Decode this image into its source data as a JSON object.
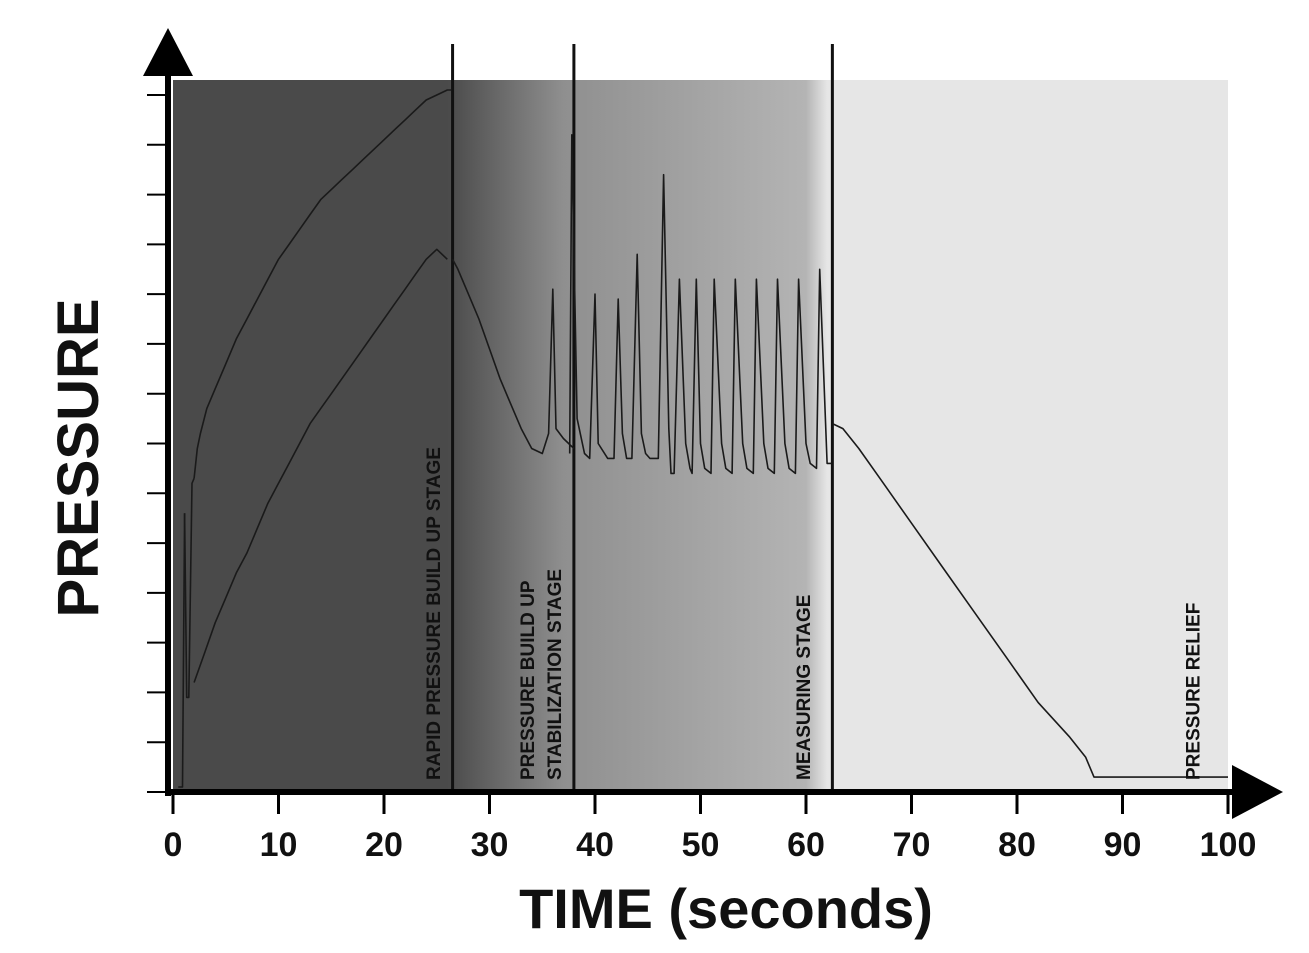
{
  "chart_data": {
    "type": "line",
    "title": "",
    "xlabel": "TIME (seconds)",
    "ylabel": "PRESSURE",
    "xlim": [
      0,
      100
    ],
    "ylim": [
      0,
      14
    ],
    "x_ticks": [
      "0",
      "10",
      "20",
      "30",
      "40",
      "50",
      "60",
      "70",
      "80",
      "90",
      "100"
    ],
    "y_ticks_labeled": false,
    "grid": false,
    "stage_boundaries": [
      26.5,
      38,
      62.5
    ],
    "stages": [
      {
        "label": "RAPID PRESSURE BUILD UP STAGE",
        "x": 25.3
      },
      {
        "label": "PRESSURE BUILD UP",
        "x": 34.2
      },
      {
        "label": "STABILIZATION STAGE",
        "x": 36.8
      },
      {
        "label": "MEASURING STAGE",
        "x": 60.4
      },
      {
        "label": "PRESSURE RELIEF",
        "x": 97.3
      }
    ],
    "background_colors": [
      "#4a4a4a",
      "#8f8f8f",
      "#b4b4b4",
      "#e6e6e6"
    ],
    "line_color": "#1a1a1a",
    "series": [
      {
        "segments": [
          {
            "x": [
              0.5,
              0.9,
              1.1
            ],
            "y": [
              0.1,
              0.1,
              5.6
            ]
          },
          {
            "x": [
              1.1,
              1.3,
              1.5,
              1.8,
              2.0
            ],
            "y": [
              5.6,
              1.9,
              1.9,
              6.2,
              6.3
            ]
          },
          {
            "x": [
              2.0,
              2.3,
              2.6,
              3.2,
              4.0,
              5.0,
              6.0,
              7.0,
              8.0,
              9.0,
              10.0,
              11.0,
              12.0,
              13.0,
              14.0,
              15.0,
              16.0,
              17.0,
              18.0,
              19.0,
              20.0,
              21.0,
              22.0,
              23.0,
              24.0,
              25.0,
              26.0,
              26.4
            ],
            "y": [
              6.3,
              6.9,
              7.2,
              7.7,
              8.1,
              8.6,
              9.1,
              9.5,
              9.9,
              10.3,
              10.7,
              11.0,
              11.3,
              11.6,
              11.9,
              12.1,
              12.3,
              12.5,
              12.7,
              12.9,
              13.1,
              13.3,
              13.5,
              13.7,
              13.9,
              14.0,
              14.1,
              14.1
            ]
          },
          {
            "x": [
              2.0,
              3.0,
              4.0,
              5.0,
              6.0,
              7.0,
              8.0,
              9.0,
              10.0,
              11.0,
              12.0,
              13.0,
              14.0,
              15.0,
              16.0,
              17.0,
              18.0,
              19.0,
              20.0,
              21.0,
              22.0,
              23.0,
              24.0,
              25.0,
              26.0
            ],
            "y": [
              2.2,
              2.8,
              3.4,
              3.9,
              4.4,
              4.8,
              5.3,
              5.8,
              6.2,
              6.6,
              7.0,
              7.4,
              7.7,
              8.0,
              8.3,
              8.6,
              8.9,
              9.2,
              9.5,
              9.8,
              10.1,
              10.4,
              10.7,
              10.9,
              10.7
            ]
          },
          {
            "x": [
              26.5,
              27.0,
              28.0,
              29.0,
              30.0,
              31.0,
              32.0,
              33.0,
              34.0,
              35.0,
              35.6,
              36.0,
              36.3,
              37.0,
              38.0
            ],
            "y": [
              10.7,
              10.5,
              10.0,
              9.5,
              8.9,
              8.3,
              7.8,
              7.3,
              6.9,
              6.8,
              7.2,
              10.1,
              7.3,
              7.1,
              6.9
            ]
          },
          {
            "x": [
              37.6,
              37.8,
              38.3,
              39.0,
              39.5,
              40.0,
              40.3,
              41.2,
              41.8,
              42.2,
              42.6,
              43.0,
              43.5,
              44.0,
              44.4,
              44.8,
              45.2,
              46.0,
              46.5,
              47.0,
              47.2,
              47.5,
              48.0,
              48.6,
              49.0,
              49.2,
              49.6,
              50.0,
              50.4,
              51.0,
              51.3,
              52.0,
              52.4,
              53.0,
              53.3,
              54.0,
              54.4,
              55.0,
              55.3,
              56.0,
              56.4,
              57.0,
              57.3,
              58.0,
              58.4,
              59.0,
              59.3,
              60.0,
              60.4,
              61.0,
              61.3,
              62.0,
              62.4
            ],
            "y": [
              6.8,
              13.2,
              7.5,
              6.8,
              6.7,
              10.0,
              7.0,
              6.7,
              6.7,
              9.9,
              7.2,
              6.7,
              6.7,
              10.8,
              7.2,
              6.8,
              6.7,
              6.7,
              12.4,
              7.3,
              6.4,
              6.4,
              10.3,
              7.0,
              6.5,
              6.4,
              10.3,
              7.0,
              6.5,
              6.4,
              10.3,
              7.0,
              6.5,
              6.4,
              10.3,
              7.0,
              6.5,
              6.4,
              10.3,
              7.0,
              6.5,
              6.4,
              10.3,
              7.0,
              6.5,
              6.4,
              10.3,
              7.0,
              6.6,
              6.5,
              10.5,
              6.6,
              6.6
            ]
          },
          {
            "x": [
              62.5,
              63.5,
              65.0,
              67.0,
              70.0,
              73.0,
              76.0,
              79.0,
              82.0,
              85.0,
              86.5,
              87.3,
              88.0,
              90.0,
              95.0,
              100.0
            ],
            "y": [
              7.4,
              7.3,
              6.9,
              6.3,
              5.4,
              4.5,
              3.6,
              2.7,
              1.8,
              1.1,
              0.7,
              0.3,
              0.3,
              0.3,
              0.3,
              0.3
            ]
          }
        ]
      }
    ]
  }
}
